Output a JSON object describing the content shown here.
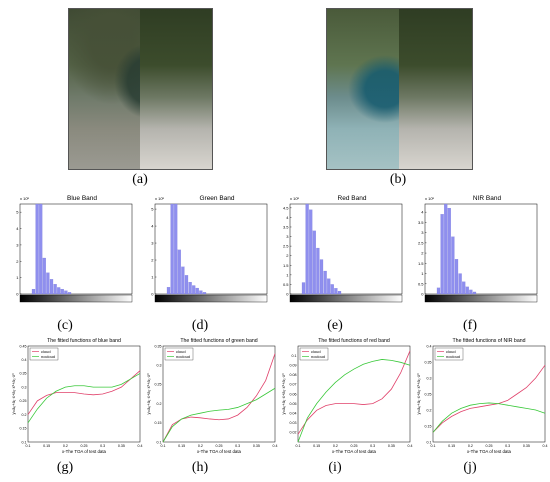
{
  "labels": {
    "a": "(a)",
    "b": "(b)",
    "c": "(c)",
    "d": "(d)",
    "e": "(e)",
    "f": "(f)",
    "g": "(g)",
    "h": "(h)",
    "i": "(i)",
    "j": "(j)"
  },
  "colors": {
    "hist_bar": "#8f8fee",
    "cloud": "#e0406a",
    "nocloud": "#38c838"
  },
  "chart_data": [
    {
      "type": "bar",
      "title": "Blue Band",
      "exponent": "x 10⁵",
      "yticks": [
        "5",
        "4",
        "3",
        "2",
        "1",
        "0"
      ],
      "ylim": [
        0,
        5.5
      ],
      "bins": [
        0.12,
        0.15,
        0.18,
        0.21,
        0.24,
        0.27,
        0.3,
        0.33,
        0.36,
        0.39,
        0.42
      ],
      "values": [
        0.3,
        5.5,
        5.5,
        2.2,
        1.3,
        0.9,
        0.6,
        0.4,
        0.3,
        0.2,
        0.1
      ]
    },
    {
      "type": "bar",
      "title": "Green Band",
      "exponent": "x 10⁵",
      "yticks": [
        "5",
        "4",
        "3",
        "2",
        "1",
        "0"
      ],
      "ylim": [
        0,
        5.3
      ],
      "bins": [
        0.12,
        0.15,
        0.18,
        0.21,
        0.24,
        0.27,
        0.3,
        0.33,
        0.36,
        0.39,
        0.42
      ],
      "values": [
        0.4,
        5.3,
        5.3,
        2.6,
        1.6,
        1.1,
        0.7,
        0.5,
        0.35,
        0.2,
        0.1
      ]
    },
    {
      "type": "bar",
      "title": "Red Band",
      "exponent": "x 10⁵",
      "yticks": [
        "4.5",
        "4",
        "3.5",
        "3",
        "2.5",
        "2",
        "1.5",
        "1",
        "0.5",
        "0"
      ],
      "ylim": [
        0,
        4.7
      ],
      "bins": [
        0.08,
        0.11,
        0.14,
        0.17,
        0.2,
        0.23,
        0.26,
        0.29,
        0.32,
        0.35,
        0.38
      ],
      "values": [
        0.6,
        4.7,
        4.4,
        3.3,
        2.4,
        1.8,
        1.2,
        0.8,
        0.5,
        0.3,
        0.15
      ]
    },
    {
      "type": "bar",
      "title": "NIR Band",
      "exponent": "x 10⁵",
      "yticks": [
        "4",
        "3.5",
        "3",
        "2.5",
        "2",
        "1.5",
        "1",
        "0.5",
        "0"
      ],
      "ylim": [
        0,
        4.4
      ],
      "bins": [
        0.12,
        0.15,
        0.18,
        0.21,
        0.24,
        0.27,
        0.3,
        0.33,
        0.36,
        0.39,
        0.42
      ],
      "values": [
        0.3,
        3.9,
        4.4,
        4.2,
        2.8,
        1.7,
        1.0,
        0.6,
        0.35,
        0.2,
        0.1
      ]
    },
    {
      "type": "line",
      "title": "The fitted functions of blue band",
      "xlabel": "x-The TOA of test data",
      "ylabel": "y=a₀+a₁·x+a₂·x²+a₃·x³",
      "legend": [
        "cloud",
        "nocloud"
      ],
      "xlim": [
        0.1,
        0.4
      ],
      "ylim": [
        0.1,
        0.45
      ],
      "xticks": [
        "0.1",
        "0.15",
        "0.2",
        "0.25",
        "0.3",
        "0.35",
        "0.4"
      ],
      "yticks": [
        "0.45",
        "0.4",
        "0.35",
        "0.3",
        "0.25",
        "0.2",
        "0.15",
        "0.1"
      ],
      "x": [
        0.1,
        0.125,
        0.15,
        0.175,
        0.2,
        0.225,
        0.25,
        0.275,
        0.3,
        0.325,
        0.35,
        0.375,
        0.4
      ],
      "series": [
        {
          "name": "cloud",
          "values": [
            0.2,
            0.25,
            0.27,
            0.28,
            0.28,
            0.28,
            0.275,
            0.272,
            0.275,
            0.285,
            0.3,
            0.33,
            0.36
          ]
        },
        {
          "name": "nocloud",
          "values": [
            0.17,
            0.22,
            0.26,
            0.285,
            0.3,
            0.305,
            0.305,
            0.3,
            0.3,
            0.3,
            0.31,
            0.33,
            0.35
          ]
        }
      ]
    },
    {
      "type": "line",
      "title": "The fitted functions of green band",
      "xlabel": "x-The TOA of test data",
      "ylabel": "y=a₀+a₁·x+a₂·x²+a₃·x³",
      "legend": [
        "cloud",
        "nocloud"
      ],
      "xlim": [
        0.1,
        0.4
      ],
      "ylim": [
        0.1,
        0.35
      ],
      "xticks": [
        "0.1",
        "0.15",
        "0.2",
        "0.25",
        "0.3",
        "0.35",
        "0.4"
      ],
      "yticks": [
        "0.35",
        "0.3",
        "0.25",
        "0.2",
        "0.15",
        "0.1"
      ],
      "x": [
        0.1,
        0.125,
        0.15,
        0.175,
        0.2,
        0.225,
        0.25,
        0.275,
        0.3,
        0.325,
        0.35,
        0.375,
        0.4
      ],
      "series": [
        {
          "name": "cloud",
          "values": [
            0.1,
            0.145,
            0.16,
            0.165,
            0.163,
            0.16,
            0.158,
            0.16,
            0.17,
            0.19,
            0.22,
            0.26,
            0.33
          ]
        },
        {
          "name": "nocloud",
          "values": [
            0.1,
            0.14,
            0.16,
            0.17,
            0.175,
            0.18,
            0.183,
            0.185,
            0.19,
            0.2,
            0.21,
            0.225,
            0.24
          ]
        }
      ]
    },
    {
      "type": "line",
      "title": "The fitted functions of red band",
      "xlabel": "x-The TOA of test data",
      "ylabel": "y=a₀+a₁·x+a₂·x²+a₃·x³",
      "legend": [
        "cloud",
        "nocloud"
      ],
      "xlim": [
        0.1,
        0.4
      ],
      "ylim": [
        0.01,
        0.11
      ],
      "xticks": [
        "0.1",
        "0.15",
        "0.2",
        "0.25",
        "0.3",
        "0.35",
        "0.4"
      ],
      "yticks": [
        "0.1",
        "0.09",
        "0.08",
        "0.07",
        "0.06",
        "0.05",
        "0.04",
        "0.03",
        "0.02"
      ],
      "x": [
        0.1,
        0.125,
        0.15,
        0.175,
        0.2,
        0.225,
        0.25,
        0.275,
        0.3,
        0.325,
        0.35,
        0.375,
        0.4
      ],
      "series": [
        {
          "name": "cloud",
          "values": [
            0.018,
            0.033,
            0.043,
            0.048,
            0.05,
            0.05,
            0.05,
            0.049,
            0.05,
            0.055,
            0.065,
            0.082,
            0.105
          ]
        },
        {
          "name": "nocloud",
          "values": [
            0.01,
            0.035,
            0.05,
            0.062,
            0.072,
            0.08,
            0.086,
            0.091,
            0.094,
            0.096,
            0.095,
            0.093,
            0.09
          ]
        }
      ]
    },
    {
      "type": "line",
      "title": "The fitted functions of NIR band",
      "xlabel": "x-The TOA of test data",
      "ylabel": "y=a₀+a₁·x+a₂·x²+a₃·x³",
      "legend": [
        "cloud",
        "nocloud"
      ],
      "xlim": [
        0.1,
        0.4
      ],
      "ylim": [
        0.1,
        0.4
      ],
      "xticks": [
        "0.1",
        "0.15",
        "0.2",
        "0.25",
        "0.3",
        "0.35",
        "0.4"
      ],
      "yticks": [
        "0.4",
        "0.35",
        "0.3",
        "0.25",
        "0.2",
        "0.15",
        "0.1"
      ],
      "x": [
        0.1,
        0.125,
        0.15,
        0.175,
        0.2,
        0.225,
        0.25,
        0.275,
        0.3,
        0.325,
        0.35,
        0.375,
        0.4
      ],
      "series": [
        {
          "name": "cloud",
          "values": [
            0.13,
            0.16,
            0.18,
            0.195,
            0.205,
            0.21,
            0.215,
            0.22,
            0.23,
            0.25,
            0.27,
            0.3,
            0.34
          ]
        },
        {
          "name": "nocloud",
          "values": [
            0.13,
            0.165,
            0.19,
            0.205,
            0.215,
            0.22,
            0.222,
            0.22,
            0.215,
            0.21,
            0.205,
            0.2,
            0.19
          ]
        }
      ]
    }
  ]
}
